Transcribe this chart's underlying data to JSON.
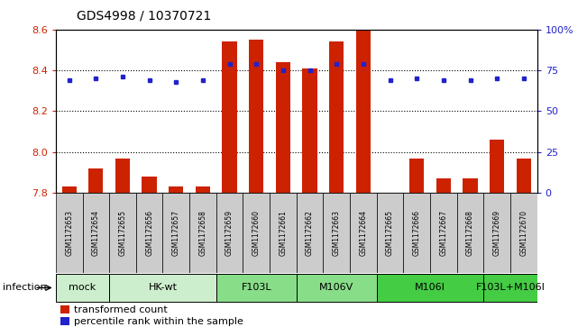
{
  "title": "GDS4998 / 10370721",
  "samples": [
    "GSM1172653",
    "GSM1172654",
    "GSM1172655",
    "GSM1172656",
    "GSM1172657",
    "GSM1172658",
    "GSM1172659",
    "GSM1172660",
    "GSM1172661",
    "GSM1172662",
    "GSM1172663",
    "GSM1172664",
    "GSM1172665",
    "GSM1172666",
    "GSM1172667",
    "GSM1172668",
    "GSM1172669",
    "GSM1172670"
  ],
  "transformed_counts": [
    7.83,
    7.92,
    7.97,
    7.88,
    7.83,
    7.83,
    8.54,
    8.55,
    8.44,
    8.41,
    8.54,
    8.61,
    7.77,
    7.97,
    7.87,
    7.87,
    8.06,
    7.97
  ],
  "percentile_ranks": [
    69,
    70,
    71,
    69,
    68,
    69,
    79,
    79,
    75,
    75,
    79,
    79,
    69,
    70,
    69,
    69,
    70,
    70
  ],
  "groups_def": [
    {
      "label": "mock",
      "indices": [
        0,
        1
      ],
      "color": "#cceecc"
    },
    {
      "label": "HK-wt",
      "indices": [
        2,
        3,
        4,
        5
      ],
      "color": "#cceecc"
    },
    {
      "label": "F103L",
      "indices": [
        6,
        7,
        8
      ],
      "color": "#88dd88"
    },
    {
      "label": "M106V",
      "indices": [
        9,
        10,
        11
      ],
      "color": "#88dd88"
    },
    {
      "label": "M106I",
      "indices": [
        12,
        13,
        14,
        15
      ],
      "color": "#44cc44"
    },
    {
      "label": "F103L+M106I",
      "indices": [
        16,
        17
      ],
      "color": "#44cc44"
    }
  ],
  "ylim_left": [
    7.8,
    8.6
  ],
  "ylim_right": [
    0,
    100
  ],
  "yticks_left": [
    7.8,
    8.0,
    8.2,
    8.4,
    8.6
  ],
  "yticks_right": [
    0,
    25,
    50,
    75,
    100
  ],
  "bar_color": "#cc2200",
  "dot_color": "#2222cc",
  "legend_bar_label": "transformed count",
  "legend_dot_label": "percentile rank within the sample",
  "infection_label": "infection",
  "sample_box_color": "#cccccc",
  "title_fontsize": 10,
  "axis_fontsize": 8,
  "sample_fontsize": 5.5,
  "group_fontsize": 8,
  "legend_fontsize": 8
}
